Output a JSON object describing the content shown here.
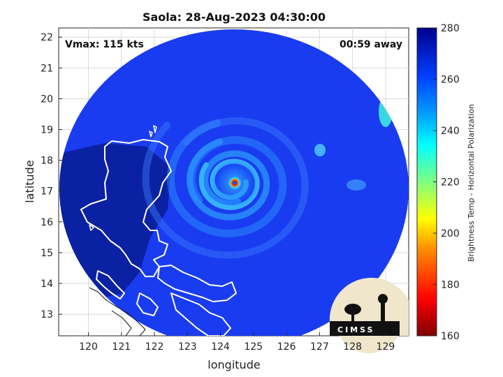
{
  "title": "Saola: 28-Aug-2023 04:30:00",
  "vmax_label": "Vmax: 115 kts",
  "away_label": "00:59 away",
  "xlabel": "longitude",
  "ylabel": "latitude",
  "x_ticks": [
    "120",
    "121",
    "122",
    "123",
    "124",
    "125",
    "126",
    "127",
    "128",
    "129"
  ],
  "y_ticks": [
    "13",
    "14",
    "15",
    "16",
    "17",
    "18",
    "19",
    "20",
    "21",
    "22"
  ],
  "colorbar": {
    "label": "Brightness Temp - Horizontal Polarization",
    "ticks": [
      "160",
      "180",
      "200",
      "220",
      "240",
      "260",
      "280"
    ],
    "range": [
      160,
      280
    ]
  },
  "map": {
    "lon_range": [
      119.1,
      129.7
    ],
    "lat_range": [
      12.3,
      22.3
    ],
    "storm_center": {
      "lon": 124.35,
      "lat": 17.3
    },
    "swath_background_temp": 265
  },
  "logo": {
    "text": "CIMSS"
  }
}
